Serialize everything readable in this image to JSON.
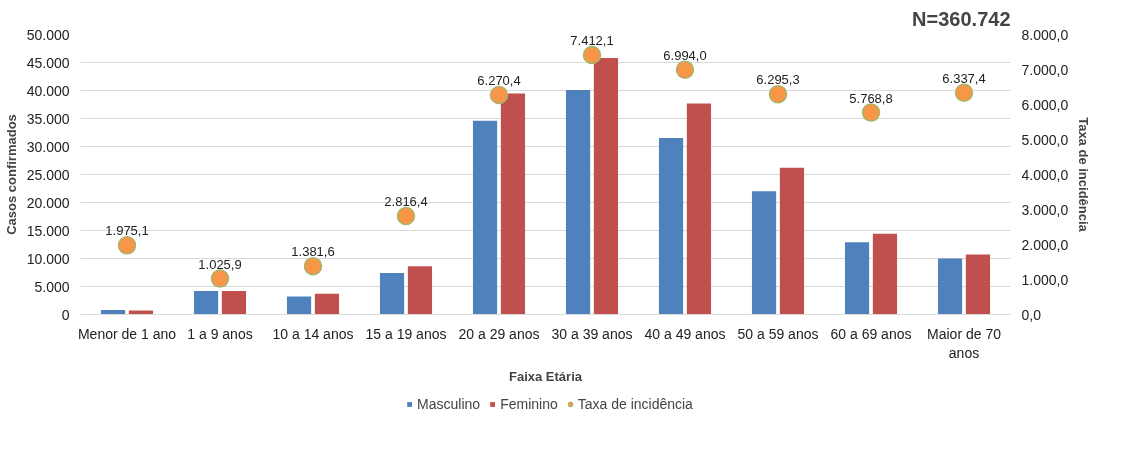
{
  "chart_data": {
    "type": "bar",
    "title": "N=360.742",
    "xlabel": "Faixa Etária",
    "ylabel": "Casos confirmados",
    "y2label": "Taxa de incidência",
    "categories": [
      "Menor de 1 ano",
      "1 a 9 anos",
      "10 a 14 anos",
      "15 a 19 anos",
      "20 a 29 anos",
      "30 a 39 anos",
      "40 a 49 anos",
      "50 a 59 anos",
      "60 a 69 anos",
      "Maior de 70 anos"
    ],
    "series": [
      {
        "name": "Masculino",
        "color": "#4f81bd",
        "values": [
          800,
          4200,
          3200,
          7400,
          34600,
          40100,
          31500,
          22000,
          12900,
          10000
        ]
      },
      {
        "name": "Feminino",
        "color": "#c0504d",
        "values": [
          700,
          4200,
          3700,
          8600,
          39450,
          45800,
          37700,
          26200,
          14400,
          10700
        ]
      },
      {
        "name": "Taxa de incidência",
        "type": "scatter",
        "axis": "y2",
        "color": "#f79646",
        "marker": "circle",
        "values": [
          1975.1,
          1025.9,
          1381.6,
          2816.4,
          6270.4,
          7412.1,
          6994.0,
          6295.3,
          5768.8,
          6337.4
        ],
        "value_labels": [
          "1.975,1",
          "1.025,9",
          "1.381,6",
          "2.816,4",
          "6.270,4",
          "7.412,1",
          "6.994,0",
          "6.295,3",
          "5.768,8",
          "6.337,4"
        ]
      }
    ],
    "ylim": [
      0,
      50000
    ],
    "yticks": [
      {
        "value": 0,
        "label": "0"
      },
      {
        "value": 5000,
        "label": "5.000"
      },
      {
        "value": 10000,
        "label": "10.000"
      },
      {
        "value": 15000,
        "label": "15.000"
      },
      {
        "value": 20000,
        "label": "20.000"
      },
      {
        "value": 25000,
        "label": "25.000"
      },
      {
        "value": 30000,
        "label": "30.000"
      },
      {
        "value": 35000,
        "label": "35.000"
      },
      {
        "value": 40000,
        "label": "40.000"
      },
      {
        "value": 45000,
        "label": "45.000"
      },
      {
        "value": 50000,
        "label": "50.000"
      }
    ],
    "y2lim": [
      0,
      8000
    ],
    "y2ticks": [
      {
        "value": 0,
        "label": "0,0"
      },
      {
        "value": 1000,
        "label": "1.000,0"
      },
      {
        "value": 2000,
        "label": "2.000,0"
      },
      {
        "value": 3000,
        "label": "3.000,0"
      },
      {
        "value": 4000,
        "label": "4.000,0"
      },
      {
        "value": 5000,
        "label": "5.000,0"
      },
      {
        "value": 6000,
        "label": "6.000,0"
      },
      {
        "value": 7000,
        "label": "7.000,0"
      },
      {
        "value": 8000,
        "label": "8.000,0"
      }
    ],
    "grid": "y",
    "legend": "bottom"
  }
}
